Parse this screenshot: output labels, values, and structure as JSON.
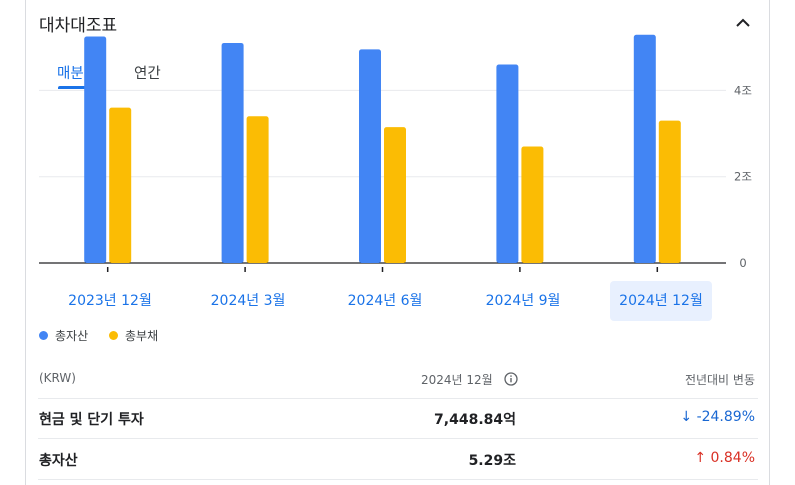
{
  "section": {
    "title": "대차대조표"
  },
  "tabs": [
    {
      "label": "매분기",
      "selected": true
    },
    {
      "label": "연간",
      "selected": false
    }
  ],
  "chart_data": {
    "type": "bar",
    "categories": [
      "2023년 12월",
      "2024년 3월",
      "2024년 6월",
      "2024년 9월",
      "2024년 12월"
    ],
    "series": [
      {
        "name": "총자산",
        "color": "#4285f4",
        "values": [
          5.25,
          5.1,
          4.95,
          4.6,
          5.29
        ]
      },
      {
        "name": "총부채",
        "color": "#fbbc04",
        "values": [
          3.6,
          3.4,
          3.15,
          2.7,
          3.3
        ]
      }
    ],
    "yticks": [
      {
        "value": 0,
        "label": "0"
      },
      {
        "value": 2,
        "label": "2조"
      },
      {
        "value": 4,
        "label": "4조"
      }
    ],
    "ylim": [
      0,
      5.4
    ],
    "selected_category": "2024년 12월",
    "grid": true
  },
  "legend": [
    {
      "label": "총자산",
      "color": "#4285f4"
    },
    {
      "label": "총부채",
      "color": "#fbbc04"
    }
  ],
  "table": {
    "header": {
      "currency": "(KRW)",
      "period": "2024년 12월",
      "change": "전년대비 변동"
    },
    "rows": [
      {
        "label": "현금 및 단기 투자",
        "value": "7,448.84억",
        "change": "-24.89%",
        "direction": "down"
      },
      {
        "label": "총자산",
        "value": "5.29조",
        "change": "0.84%",
        "direction": "up"
      }
    ]
  }
}
